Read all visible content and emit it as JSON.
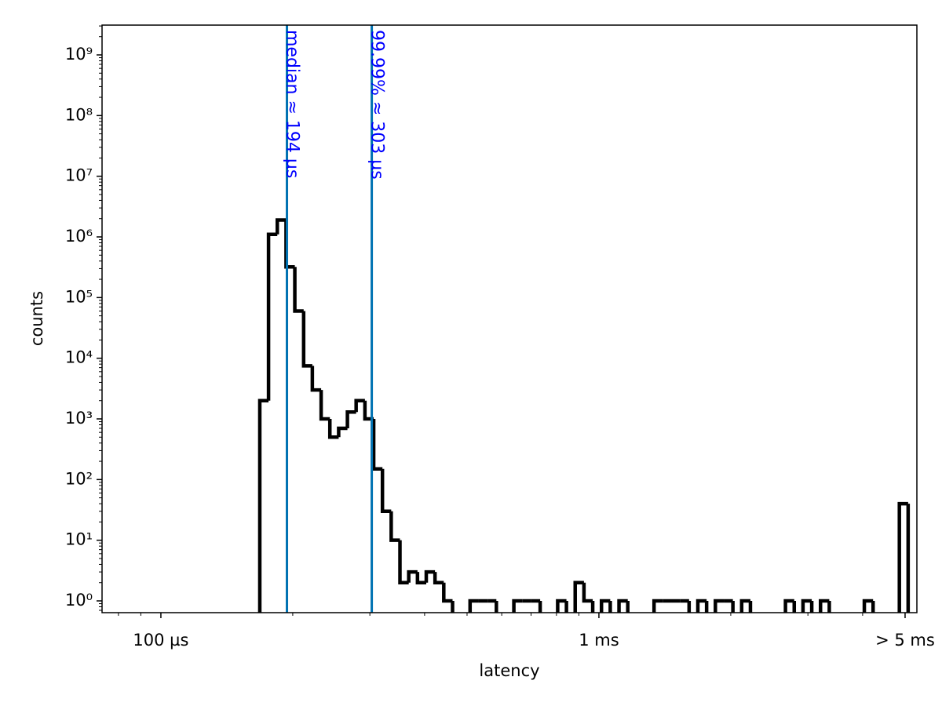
{
  "chart_data": {
    "type": "histogram",
    "x_label": "latency",
    "y_label": "counts",
    "x_log": true,
    "y_log": true,
    "xlim": [
      73.4,
      5320
    ],
    "ylim": [
      0.64,
      3100000000
    ],
    "xticks": [
      {
        "value": 100,
        "label": "100 µs"
      },
      {
        "value": 1000,
        "label": "1 ms"
      },
      {
        "value": 5000,
        "label": "> 5 ms"
      }
    ],
    "yticks": [
      {
        "value": 1,
        "label": "10⁰"
      },
      {
        "value": 10,
        "label": "10¹"
      },
      {
        "value": 100,
        "label": "10²"
      },
      {
        "value": 1000,
        "label": "10³"
      },
      {
        "value": 10000,
        "label": "10⁴"
      },
      {
        "value": 100000,
        "label": "10⁵"
      },
      {
        "value": 1000000,
        "label": "10⁶"
      },
      {
        "value": 10000000,
        "label": "10⁷"
      },
      {
        "value": 100000000,
        "label": "10⁸"
      },
      {
        "value": 1000000000,
        "label": "10⁹"
      }
    ],
    "color": "#000000",
    "bins": [
      168.2,
      176.1,
      184.4,
      193.1,
      202.2,
      211.8,
      221.7,
      232.2,
      243.1,
      254.6,
      266.6,
      279.1,
      292.3,
      306.1,
      320.5,
      335.6,
      351.4,
      368.0,
      385.3,
      403.5,
      422.5,
      442.4,
      463.3,
      485.1,
      508.0,
      531.9,
      557.0,
      583.3,
      610.7,
      639.5,
      669.7,
      701.2,
      734.3,
      768.9,
      805.1,
      843.1,
      882.8,
      924.4,
      968.0,
      1013.6,
      1061.4,
      1111.4,
      1163.8,
      1218.6,
      1276.1,
      1336.2,
      1399.2,
      1465.2,
      1534.2,
      1606.5,
      1682.2,
      1761.5,
      1844.6,
      1931.5,
      2022.5,
      2117.9,
      2217.7,
      2322.2,
      2431.7,
      2546.3,
      2666.3,
      2792.0,
      2923.6,
      3061.4,
      3205.7,
      3356.8,
      3515.0,
      3680.7,
      3854.2,
      4035.8,
      4226.0,
      4425.2,
      4633.8,
      4852.2,
      5080.9
    ],
    "counts": [
      2000,
      1100000,
      1900000,
      320000,
      60000,
      7500,
      3000,
      1000,
      500,
      700,
      1300,
      2000,
      1000,
      150,
      30,
      10,
      2,
      3,
      2,
      3,
      2,
      1,
      0,
      0,
      1,
      1,
      1,
      0,
      0,
      1,
      1,
      1,
      0,
      0,
      1,
      0,
      2,
      1,
      0,
      1,
      0,
      1,
      0,
      0,
      0,
      1,
      1,
      1,
      1,
      0,
      1,
      0,
      1,
      1,
      0,
      1,
      0,
      0,
      0,
      0,
      1,
      0,
      1,
      0,
      1,
      0,
      0,
      0,
      0,
      1,
      0,
      0,
      0,
      40
    ],
    "vlines": [
      {
        "value": 194,
        "label": "median ≈ 194 µs"
      },
      {
        "value": 303,
        "label": "99.99% ≈ 303 µs"
      }
    ],
    "vline_color": "#0072b2",
    "vline_label_color": "#0000ff"
  }
}
